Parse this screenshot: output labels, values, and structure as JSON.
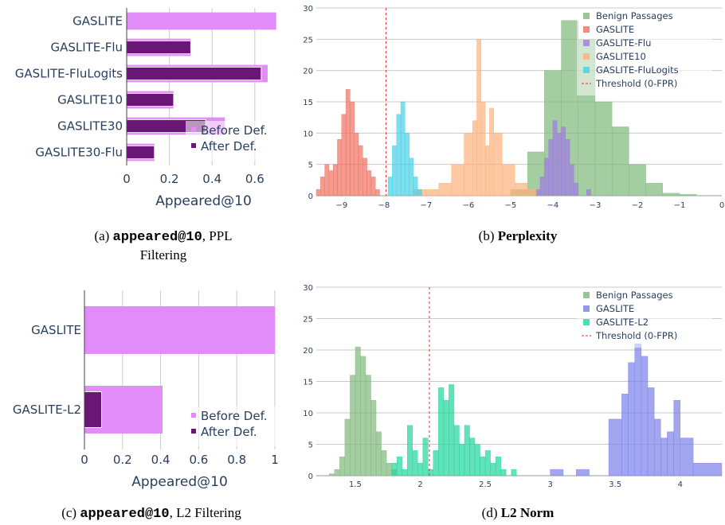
{
  "colors": {
    "before": "#e18cf8",
    "after": "#6a1677",
    "benign": "#7fb87a",
    "gaslite": "#ef6f5f",
    "flu": "#a07be2",
    "gaslite10": "#fdb07a",
    "flulogits": "#46d0e6",
    "gaslite_l2": "#1fd59b",
    "gaslite_d": "#7a80ea",
    "threshold": "#dd3333",
    "axis_text": "#2a3f5f",
    "grid": "#c9c9c9"
  },
  "captions": {
    "a_code": "appeared@10",
    "a_text": ", PPL",
    "a_text2": "Filtering",
    "a_prefix": "(a) ",
    "b_prefix": "(b) ",
    "b_text": "Perplexity",
    "c_prefix": "(c) ",
    "c_code": "appeared@10",
    "c_text": ", L2 Filtering",
    "d_prefix": "(d) ",
    "d_text": "L2 Norm"
  },
  "chart_data": [
    {
      "id": "a",
      "type": "bar",
      "orientation": "horizontal",
      "categories": [
        "GASLITE",
        "GASLITE-Flu",
        "GASLITE-FluLogits",
        "GASLITE10",
        "GASLITE30",
        "GASLITE30-Flu"
      ],
      "series": [
        {
          "name": "Before Def.",
          "values": [
            0.7,
            0.3,
            0.66,
            0.22,
            0.46,
            0.13
          ]
        },
        {
          "name": "After Def.",
          "values": [
            0.0,
            0.3,
            0.63,
            0.22,
            0.37,
            0.13
          ]
        }
      ],
      "xlabel": "Appeared@10",
      "xlim": [
        0,
        0.72
      ],
      "xticks": [
        0,
        0.2,
        0.4,
        0.6
      ],
      "xtick_labels": [
        "0",
        "0.2",
        "0.4",
        "0.6"
      ],
      "legend": "bottom-right"
    },
    {
      "id": "b",
      "type": "histogram",
      "xlim": [
        -9.6,
        0
      ],
      "ylim": [
        0,
        30
      ],
      "xticks": [
        -9,
        -8,
        -7,
        -6,
        -5,
        -4,
        -3,
        -2,
        -1,
        0
      ],
      "xtick_labels": [
        "−9",
        "−8",
        "−7",
        "−6",
        "−5",
        "−4",
        "−3",
        "−2",
        "−1",
        "0"
      ],
      "yticks": [
        0,
        5,
        10,
        15,
        20,
        25,
        30
      ],
      "ytick_labels": [
        "0",
        "5",
        "10",
        "15",
        "20",
        "25",
        "30"
      ],
      "threshold": -7.95,
      "legend": "top-right",
      "series": [
        {
          "name": "Benign Passages",
          "color_key": "benign",
          "bins": [
            [
              -5.0,
              -4.6,
              1
            ],
            [
              -4.6,
              -4.2,
              7
            ],
            [
              -4.2,
              -3.8,
              20
            ],
            [
              -3.8,
              -3.4,
              28
            ],
            [
              -3.4,
              -3.0,
              25
            ],
            [
              -3.0,
              -2.6,
              15
            ],
            [
              -2.6,
              -2.2,
              11
            ],
            [
              -2.2,
              -1.8,
              5
            ],
            [
              -1.8,
              -1.4,
              2
            ],
            [
              -1.4,
              -1.0,
              0.4
            ],
            [
              -1.0,
              -0.6,
              0.2
            ]
          ]
        },
        {
          "name": "GASLITE",
          "color_key": "gaslite",
          "bins": [
            [
              -9.6,
              -9.5,
              1
            ],
            [
              -9.5,
              -9.4,
              3
            ],
            [
              -9.4,
              -9.3,
              5
            ],
            [
              -9.3,
              -9.2,
              4
            ],
            [
              -9.2,
              -9.1,
              5
            ],
            [
              -9.1,
              -9.0,
              9
            ],
            [
              -9.0,
              -8.9,
              13
            ],
            [
              -8.9,
              -8.8,
              17
            ],
            [
              -8.8,
              -8.7,
              15
            ],
            [
              -8.7,
              -8.6,
              10
            ],
            [
              -8.6,
              -8.5,
              8
            ],
            [
              -8.5,
              -8.4,
              6
            ],
            [
              -8.4,
              -8.3,
              4
            ],
            [
              -8.3,
              -8.2,
              3
            ],
            [
              -8.2,
              -8.1,
              1
            ]
          ]
        },
        {
          "name": "GASLITE-Flu",
          "color_key": "flu",
          "bins": [
            [
              -4.4,
              -4.3,
              1
            ],
            [
              -4.3,
              -4.2,
              3
            ],
            [
              -4.2,
              -4.1,
              6
            ],
            [
              -4.1,
              -4.0,
              9
            ],
            [
              -4.0,
              -3.9,
              12
            ],
            [
              -3.9,
              -3.8,
              10
            ],
            [
              -3.8,
              -3.7,
              11
            ],
            [
              -3.7,
              -3.6,
              9
            ],
            [
              -3.6,
              -3.5,
              5
            ],
            [
              -3.5,
              -3.4,
              2
            ],
            [
              -3.2,
              -3.1,
              1
            ]
          ]
        },
        {
          "name": "GASLITE10",
          "color_key": "gaslite10",
          "bins": [
            [
              -7.3,
              -7.0,
              1
            ],
            [
              -7.0,
              -6.7,
              1
            ],
            [
              -6.7,
              -6.4,
              2
            ],
            [
              -6.4,
              -6.1,
              5
            ],
            [
              -6.1,
              -5.9,
              10
            ],
            [
              -5.9,
              -5.8,
              12
            ],
            [
              -5.8,
              -5.7,
              25
            ],
            [
              -5.7,
              -5.6,
              15
            ],
            [
              -5.6,
              -5.5,
              8
            ],
            [
              -5.5,
              -5.4,
              14
            ],
            [
              -5.4,
              -5.2,
              10
            ],
            [
              -5.2,
              -4.9,
              5
            ],
            [
              -4.9,
              -4.6,
              2
            ],
            [
              -4.6,
              -4.4,
              1
            ]
          ]
        },
        {
          "name": "GASLITE-FluLogits",
          "color_key": "flulogits",
          "bins": [
            [
              -7.9,
              -7.8,
              3
            ],
            [
              -7.8,
              -7.7,
              8
            ],
            [
              -7.7,
              -7.6,
              13
            ],
            [
              -7.6,
              -7.5,
              15
            ],
            [
              -7.5,
              -7.4,
              10
            ],
            [
              -7.4,
              -7.3,
              6
            ],
            [
              -7.3,
              -7.2,
              3
            ],
            [
              -7.2,
              -7.1,
              1
            ]
          ]
        }
      ]
    },
    {
      "id": "c",
      "type": "bar",
      "orientation": "horizontal",
      "categories": [
        "GASLITE",
        "GASLITE-L2"
      ],
      "series": [
        {
          "name": "Before Def.",
          "values": [
            1.0,
            0.41
          ]
        },
        {
          "name": "After Def.",
          "values": [
            0.0,
            0.09
          ]
        }
      ],
      "xlabel": "Appeared@10",
      "xlim": [
        0,
        1
      ],
      "xticks": [
        0,
        0.2,
        0.4,
        0.6,
        0.8,
        1
      ],
      "xtick_labels": [
        "0",
        "0.2",
        "0.4",
        "0.6",
        "0.8",
        "1"
      ],
      "legend": "bottom-right"
    },
    {
      "id": "d",
      "type": "histogram",
      "xlim": [
        1.2,
        4.32
      ],
      "ylim": [
        0,
        30
      ],
      "xticks": [
        1.5,
        2,
        2.5,
        3,
        3.5,
        4
      ],
      "xtick_labels": [
        "1.5",
        "2",
        "2.5",
        "3",
        "3.5",
        "4"
      ],
      "yticks": [
        0,
        5,
        10,
        15,
        20,
        25,
        30
      ],
      "ytick_labels": [
        "0",
        "5",
        "10",
        "15",
        "20",
        "25",
        "30"
      ],
      "threshold": 2.07,
      "legend": "top-right",
      "series": [
        {
          "name": "Benign Passages",
          "color_key": "benign",
          "bins": [
            [
              1.3,
              1.34,
              0.3
            ],
            [
              1.34,
              1.38,
              1
            ],
            [
              1.38,
              1.42,
              3
            ],
            [
              1.42,
              1.46,
              9
            ],
            [
              1.46,
              1.5,
              16
            ],
            [
              1.5,
              1.54,
              20.5
            ],
            [
              1.54,
              1.58,
              19
            ],
            [
              1.58,
              1.62,
              16
            ],
            [
              1.62,
              1.66,
              12
            ],
            [
              1.66,
              1.7,
              7
            ],
            [
              1.7,
              1.74,
              4
            ],
            [
              1.74,
              1.78,
              2
            ],
            [
              1.78,
              1.82,
              1
            ]
          ]
        },
        {
          "name": "GASLITE",
          "color_key": "gaslite_d",
          "bins": [
            [
              3.0,
              3.1,
              1
            ],
            [
              3.2,
              3.3,
              1
            ],
            [
              3.45,
              3.55,
              9
            ],
            [
              3.55,
              3.6,
              13
            ],
            [
              3.6,
              3.65,
              18
            ],
            [
              3.65,
              3.7,
              21
            ],
            [
              3.7,
              3.75,
              19
            ],
            [
              3.75,
              3.8,
              14
            ],
            [
              3.8,
              3.85,
              9
            ],
            [
              3.85,
              3.9,
              6
            ],
            [
              3.9,
              3.95,
              7
            ],
            [
              3.95,
              4.0,
              12
            ],
            [
              4.0,
              4.1,
              6
            ],
            [
              4.1,
              4.32,
              2
            ]
          ]
        },
        {
          "name": "GASLITE-L2",
          "color_key": "gaslite_l2",
          "bins": [
            [
              1.78,
              1.82,
              2
            ],
            [
              1.82,
              1.86,
              3
            ],
            [
              1.86,
              1.9,
              1
            ],
            [
              1.9,
              1.94,
              8
            ],
            [
              1.94,
              1.98,
              4
            ],
            [
              1.98,
              2.02,
              2
            ],
            [
              2.02,
              2.06,
              6
            ],
            [
              2.06,
              2.1,
              1
            ],
            [
              2.1,
              2.14,
              4
            ],
            [
              2.14,
              2.18,
              14
            ],
            [
              2.18,
              2.22,
              12
            ],
            [
              2.22,
              2.26,
              14.5
            ],
            [
              2.26,
              2.3,
              8
            ],
            [
              2.3,
              2.34,
              5
            ],
            [
              2.34,
              2.38,
              8
            ],
            [
              2.38,
              2.42,
              6
            ],
            [
              2.42,
              2.46,
              5
            ],
            [
              2.46,
              2.5,
              3
            ],
            [
              2.5,
              2.54,
              4
            ],
            [
              2.54,
              2.58,
              2
            ],
            [
              2.58,
              2.62,
              3
            ],
            [
              2.62,
              2.66,
              1
            ],
            [
              2.7,
              2.74,
              1
            ]
          ]
        }
      ]
    }
  ]
}
